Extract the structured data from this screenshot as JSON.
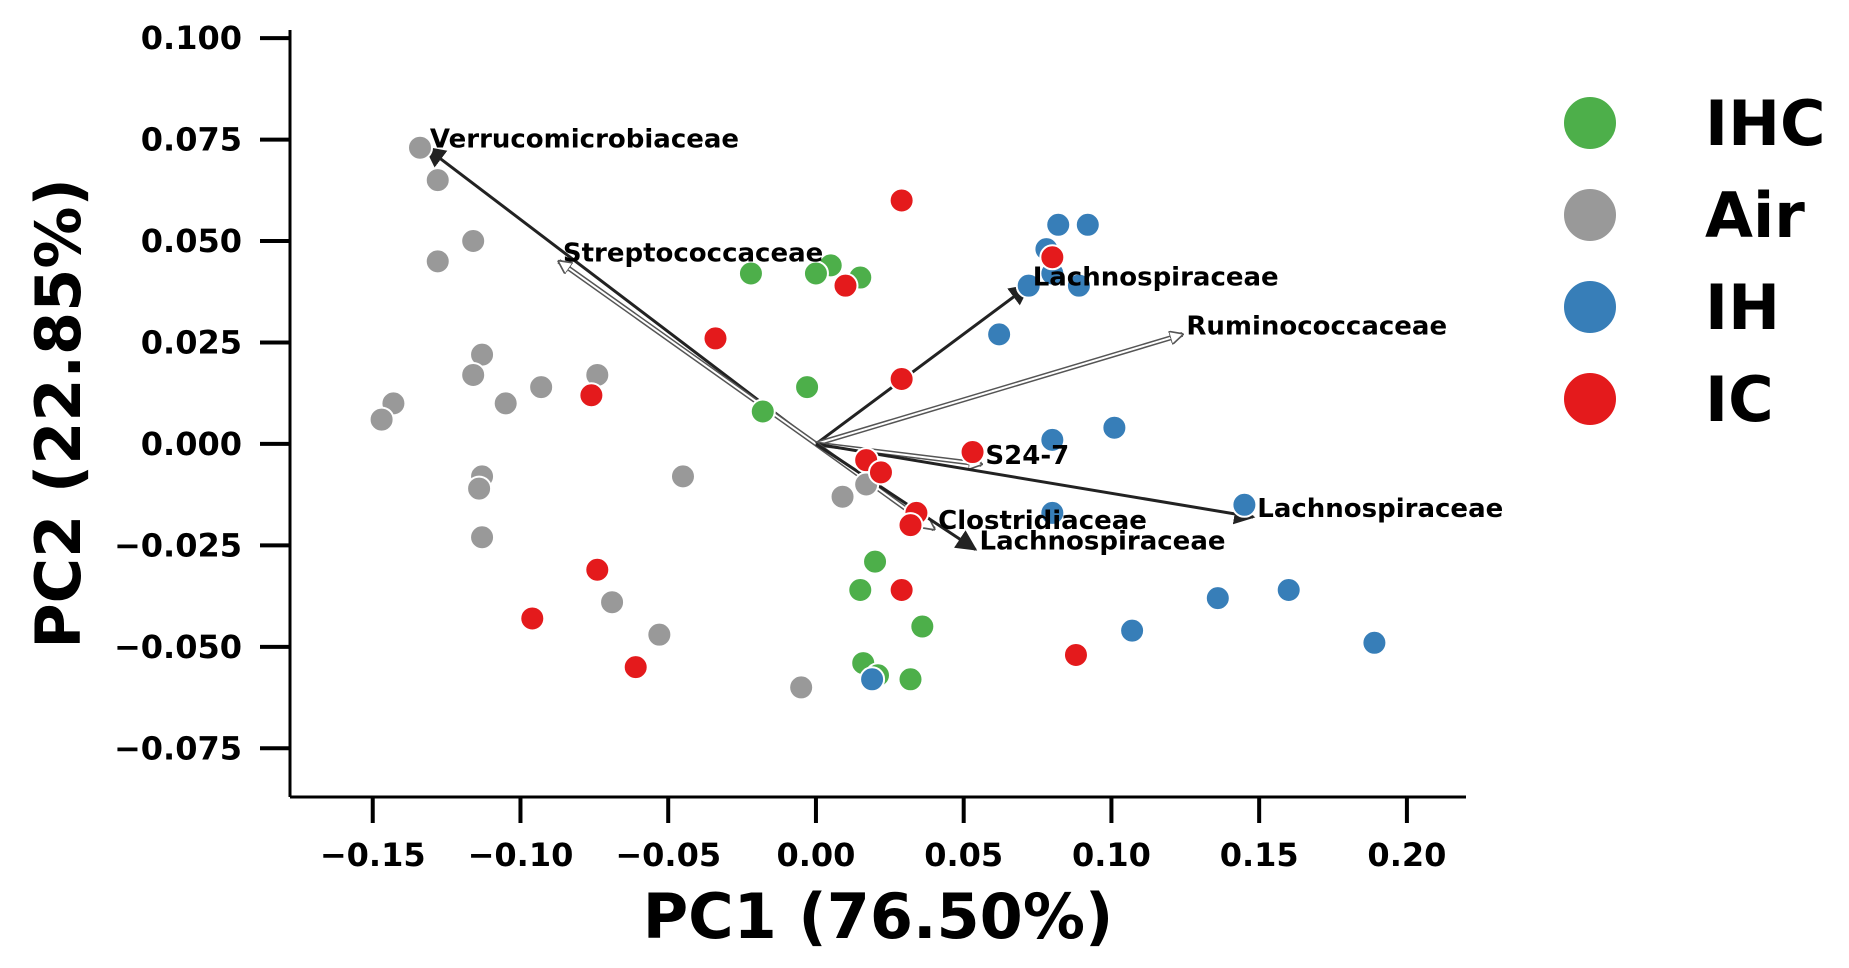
{
  "chart_data": {
    "type": "scatter",
    "subtype": "pca-biplot",
    "xlabel": "PC1 (76.50%)",
    "ylabel": "PC2 (22.85%)",
    "xlim": [
      -0.178,
      0.22
    ],
    "ylim": [
      -0.087,
      0.102
    ],
    "xticks": [
      -0.15,
      -0.1,
      -0.05,
      0.0,
      0.05,
      0.1,
      0.15,
      0.2
    ],
    "xtick_labels": [
      "−0.15",
      "−0.10",
      "−0.05",
      "0.00",
      "0.05",
      "0.10",
      "0.15",
      "0.20"
    ],
    "yticks": [
      0.1,
      0.075,
      0.05,
      0.025,
      0.0,
      -0.025,
      -0.05,
      -0.075
    ],
    "ytick_labels": [
      "0.100",
      "0.075",
      "0.050",
      "0.025",
      "0.000",
      "−0.025",
      "−0.050",
      "−0.075"
    ],
    "legend_position": "right",
    "series": [
      {
        "name": "IHC",
        "color": "#4daf4a",
        "points": [
          [
            0.005,
            0.044
          ],
          [
            0.015,
            0.041
          ],
          [
            0.0,
            0.042
          ],
          [
            -0.022,
            0.042
          ],
          [
            -0.003,
            0.014
          ],
          [
            -0.018,
            0.008
          ],
          [
            0.02,
            -0.029
          ],
          [
            0.015,
            -0.036
          ],
          [
            0.036,
            -0.045
          ],
          [
            0.016,
            -0.054
          ],
          [
            0.021,
            -0.057
          ],
          [
            0.032,
            -0.058
          ]
        ]
      },
      {
        "name": "Air",
        "color": "#999999",
        "points": [
          [
            -0.134,
            0.073
          ],
          [
            -0.128,
            0.065
          ],
          [
            -0.116,
            0.05
          ],
          [
            -0.128,
            0.045
          ],
          [
            -0.113,
            0.022
          ],
          [
            -0.116,
            0.017
          ],
          [
            -0.074,
            0.017
          ],
          [
            -0.093,
            0.014
          ],
          [
            -0.105,
            0.01
          ],
          [
            -0.143,
            0.01
          ],
          [
            -0.147,
            0.006
          ],
          [
            -0.113,
            -0.008
          ],
          [
            -0.114,
            -0.011
          ],
          [
            -0.045,
            -0.008
          ],
          [
            -0.113,
            -0.023
          ],
          [
            -0.069,
            -0.039
          ],
          [
            -0.053,
            -0.047
          ],
          [
            -0.005,
            -0.06
          ],
          [
            0.017,
            -0.01
          ],
          [
            0.009,
            -0.013
          ]
        ]
      },
      {
        "name": "IH",
        "color": "#377eb8",
        "points": [
          [
            0.082,
            0.054
          ],
          [
            0.092,
            0.054
          ],
          [
            0.078,
            0.048
          ],
          [
            0.08,
            0.042
          ],
          [
            0.072,
            0.039
          ],
          [
            0.089,
            0.039
          ],
          [
            0.062,
            0.027
          ],
          [
            0.08,
            0.001
          ],
          [
            0.101,
            0.004
          ],
          [
            0.145,
            -0.015
          ],
          [
            0.08,
            -0.017
          ],
          [
            0.136,
            -0.038
          ],
          [
            0.16,
            -0.036
          ],
          [
            0.107,
            -0.046
          ],
          [
            0.189,
            -0.049
          ],
          [
            0.019,
            -0.058
          ]
        ]
      },
      {
        "name": "IC",
        "color": "#e41a1c",
        "points": [
          [
            0.029,
            0.06
          ],
          [
            0.08,
            0.046
          ],
          [
            0.01,
            0.039
          ],
          [
            -0.034,
            0.026
          ],
          [
            0.029,
            0.016
          ],
          [
            -0.076,
            0.012
          ],
          [
            0.053,
            -0.002
          ],
          [
            0.017,
            -0.004
          ],
          [
            0.022,
            -0.007
          ],
          [
            0.034,
            -0.017
          ],
          [
            0.032,
            -0.02
          ],
          [
            -0.074,
            -0.031
          ],
          [
            0.029,
            -0.036
          ],
          [
            -0.096,
            -0.043
          ],
          [
            -0.061,
            -0.055
          ],
          [
            0.088,
            -0.052
          ]
        ]
      }
    ],
    "loadings": [
      {
        "label": "Verrucomicrobiaceae",
        "x": -0.132,
        "y": 0.073,
        "style": "dark"
      },
      {
        "label": "Streptococcaceae",
        "x": -0.087,
        "y": 0.045,
        "style": "light"
      },
      {
        "label": "Lachnospiraceae",
        "x": 0.072,
        "y": 0.039,
        "style": "dark"
      },
      {
        "label": "Ruminococcaceae",
        "x": 0.124,
        "y": 0.027,
        "style": "light"
      },
      {
        "label": "S24-7",
        "x": 0.056,
        "y": -0.005,
        "style": "light"
      },
      {
        "label": "Lachnospiraceae",
        "x": 0.148,
        "y": -0.018,
        "style": "dark"
      },
      {
        "label": "Clostridiaceae",
        "x": 0.04,
        "y": -0.021,
        "style": "light"
      },
      {
        "label": "Lachnospiraceae",
        "x": 0.054,
        "y": -0.026,
        "style": "dark"
      }
    ]
  }
}
